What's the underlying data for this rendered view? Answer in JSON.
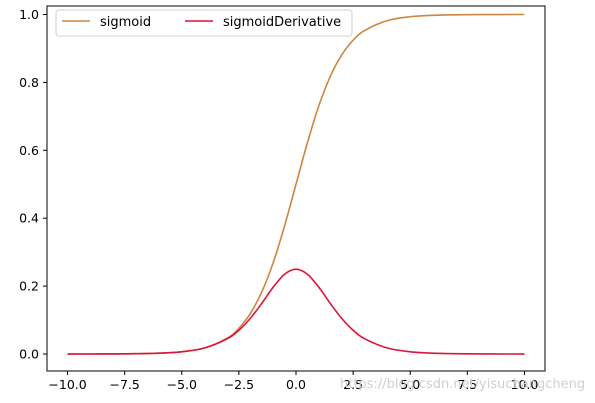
{
  "chart_data": {
    "type": "line",
    "xlim": [
      -10.9,
      10.9
    ],
    "ylim": [
      -0.05,
      1.025
    ],
    "xticks": [
      -10.0,
      -7.5,
      -5.0,
      -2.5,
      0.0,
      2.5,
      5.0,
      7.5,
      10.0
    ],
    "xtick_labels": [
      "−10.0",
      "−7.5",
      "−5.0",
      "−2.5",
      "0.0",
      "2.5",
      "5.0",
      "7.5",
      "10.0"
    ],
    "yticks": [
      0.0,
      0.2,
      0.4,
      0.6,
      0.8,
      1.0
    ],
    "ytick_labels": [
      "0.0",
      "0.2",
      "0.4",
      "0.6",
      "0.8",
      "1.0"
    ],
    "legend_position": "upper-left",
    "grid": false,
    "x": [
      -10,
      -9,
      -8,
      -7,
      -6,
      -5,
      -4,
      -3,
      -2.5,
      -2,
      -1.5,
      -1,
      -0.5,
      0,
      0.5,
      1,
      1.5,
      2,
      2.5,
      3,
      4,
      5,
      6,
      7,
      8,
      9,
      10
    ],
    "series": [
      {
        "name": "sigmoid",
        "color": "#cd853f",
        "values": [
          0.0,
          0.0001,
          0.0003,
          0.0009,
          0.0025,
          0.0067,
          0.018,
          0.0474,
          0.0759,
          0.1192,
          0.1824,
          0.2689,
          0.3775,
          0.5,
          0.6225,
          0.7311,
          0.8176,
          0.8808,
          0.9241,
          0.9526,
          0.982,
          0.9933,
          0.9975,
          0.9991,
          0.9997,
          0.9999,
          1.0
        ]
      },
      {
        "name": "sigmoidDerivative",
        "color": "#dc143c",
        "values": [
          0.0,
          0.0001,
          0.0003,
          0.0009,
          0.0025,
          0.0066,
          0.0177,
          0.0452,
          0.0701,
          0.105,
          0.1491,
          0.1966,
          0.235,
          0.25,
          0.235,
          0.1966,
          0.1491,
          0.105,
          0.0701,
          0.0452,
          0.0177,
          0.0066,
          0.0025,
          0.0009,
          0.0003,
          0.0001,
          0.0
        ]
      }
    ]
  },
  "watermark": "https://blog.csdn.net/yisuchangcheng"
}
